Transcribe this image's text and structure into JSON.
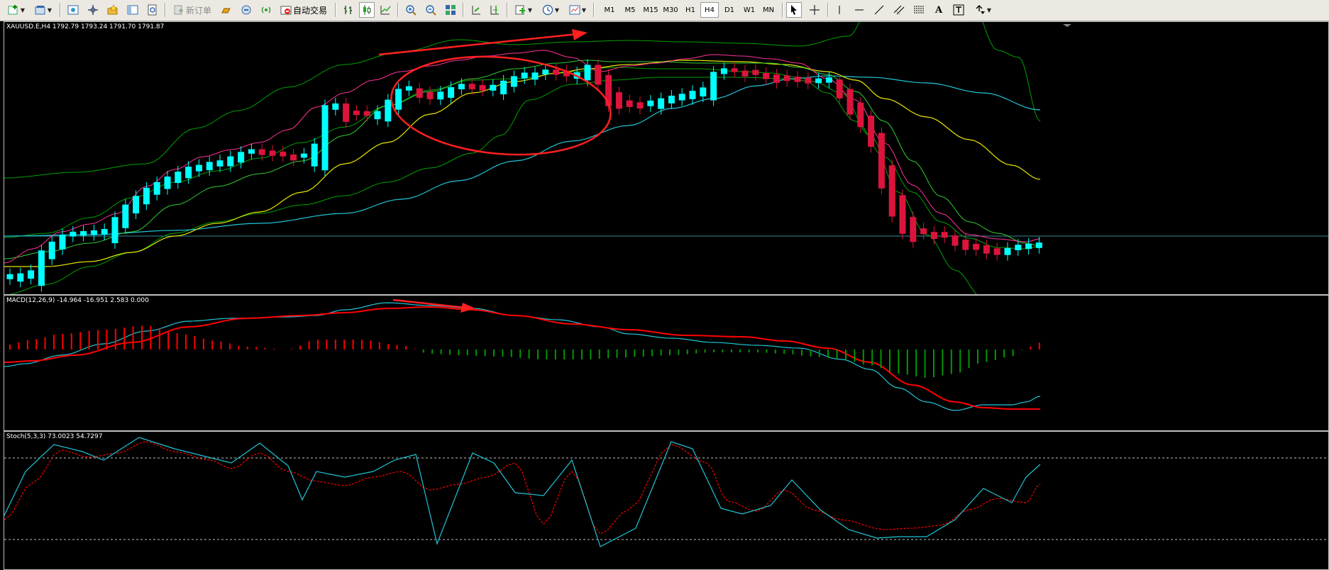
{
  "toolbar": {
    "new_order": "新订单",
    "auto_trading": "自动交易",
    "timeframes": [
      "M1",
      "M5",
      "M15",
      "M30",
      "H1",
      "H4",
      "D1",
      "W1",
      "MN"
    ],
    "active_timeframe": "H4"
  },
  "price_pane": {
    "label": "XAUUSD.E,H4  1792.79 1793.24 1791.70 1791.87"
  },
  "macd_pane": {
    "label": "MACD(12,26,9) -14.964 -16.951 2.583 0.000"
  },
  "stoch_pane": {
    "label": "Stoch(5,3,3) 73.0023 54.7297"
  },
  "colors": {
    "bull": "#00ffff",
    "bear": "#dc143c",
    "annotation": "#ff2020",
    "bb": "#00a000",
    "ma_fast": "#ff3399",
    "ma_mid": "#33cc33",
    "ma_slow": "#e6e600",
    "ma_long": "#22c4d6",
    "macd_line": "#22c4d6",
    "macd_signal": "#ff0000",
    "hist_pos": "#ff0000",
    "hist_neg": "#009900"
  }
}
